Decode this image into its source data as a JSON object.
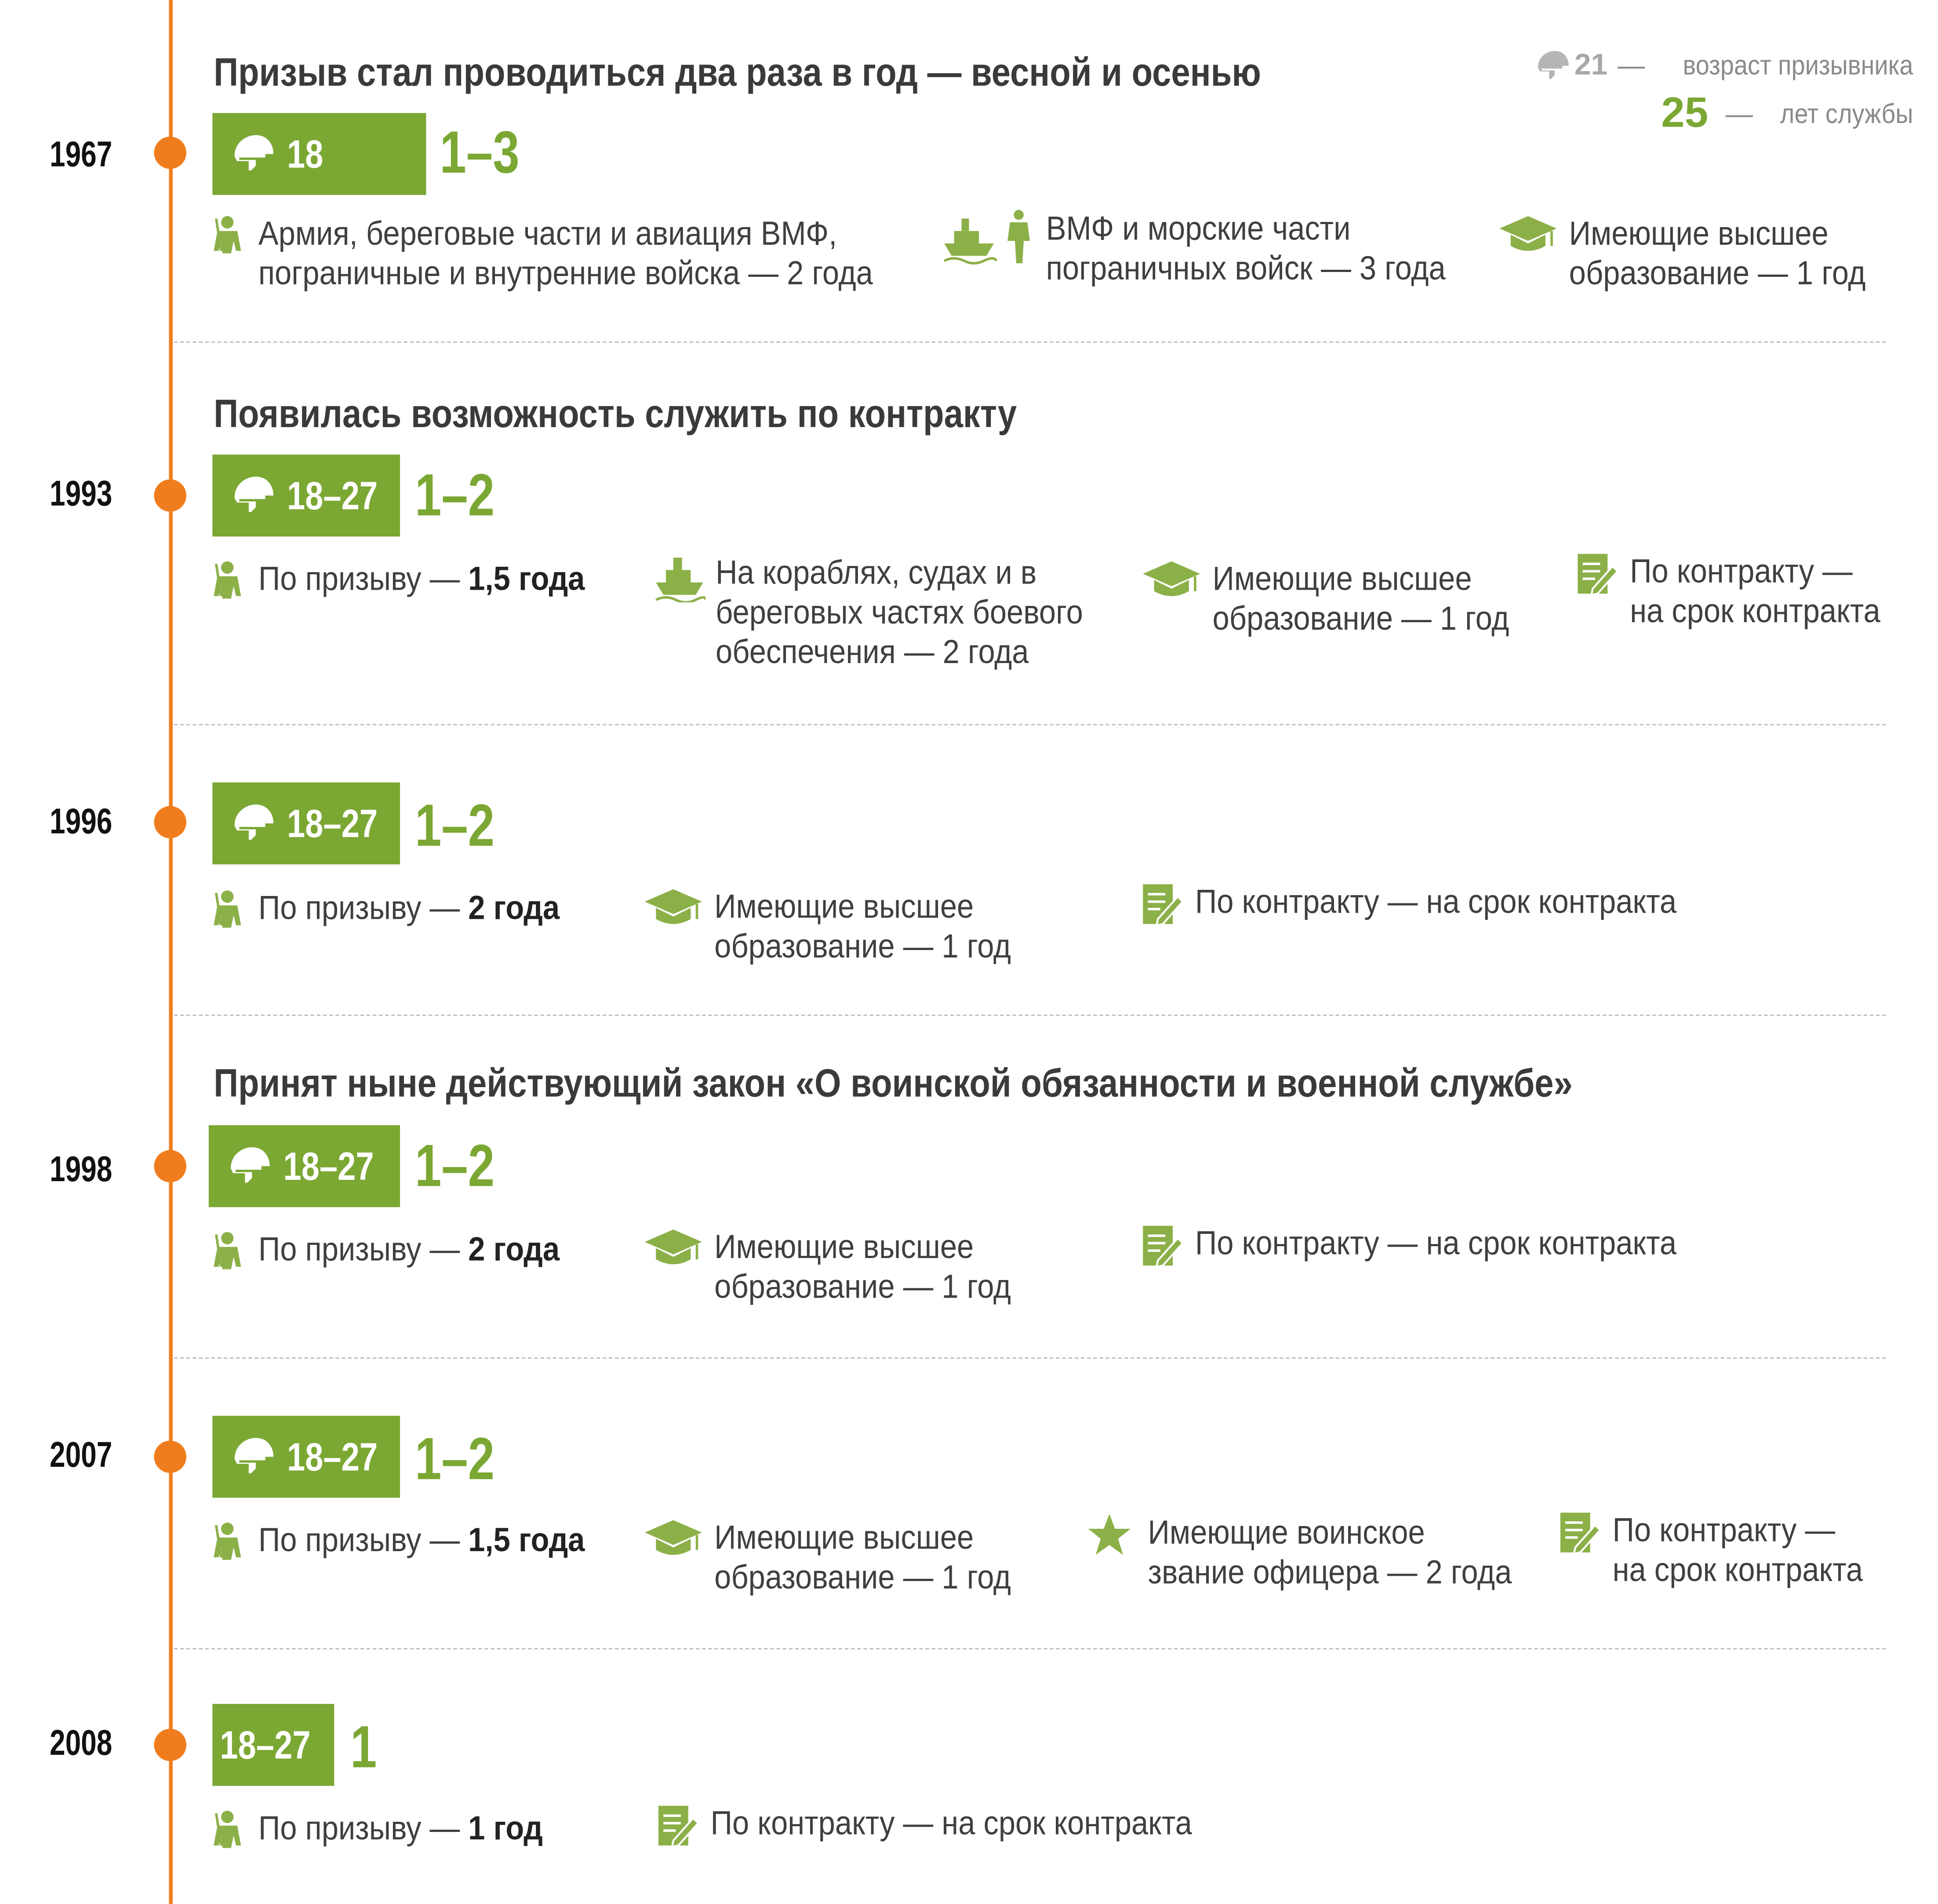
{
  "legend": {
    "age_value": "21",
    "age_label": "возраст призывника",
    "years_value": "25",
    "years_label": "лет службы",
    "dash": "—"
  },
  "colors": {
    "accent_green": "#7ba733",
    "timeline_orange": "#f07d1d",
    "icon_green": "#8cb048"
  },
  "entries": [
    {
      "year": "1967",
      "title": "Призыв стал проводиться два раза в год — весной и осенью",
      "age": "18",
      "years": "1–3",
      "items": [
        {
          "icon": "soldier-icon",
          "text": "Армия, береговые части и авиация ВМФ,\nпограничные и внутренние войска — 2 года"
        },
        {
          "icon": "ship-soldier-icon",
          "text": "ВМФ и морские части\nпограничных войск — 3 года"
        },
        {
          "icon": "graduation-cap-icon",
          "text": "Имеющие высшее\nобразование — 1 год"
        }
      ]
    },
    {
      "year": "1993",
      "title": "Появилась возможность служить по контракту",
      "age": "18–27",
      "years": "1–2",
      "items": [
        {
          "icon": "soldier-icon",
          "text": "По призыву — ",
          "bold": "1,5 года"
        },
        {
          "icon": "ship-icon",
          "text": "На кораблях, судах и в\nбереговых частях боевого\nобеспечения — 2 года"
        },
        {
          "icon": "graduation-cap-icon",
          "text": "Имеющие высшее\nобразование — 1 год"
        },
        {
          "icon": "contract-icon",
          "text": "По контракту —\nна срок контракта"
        }
      ]
    },
    {
      "year": "1996",
      "title": "",
      "age": "18–27",
      "years": "1–2",
      "items": [
        {
          "icon": "soldier-icon",
          "text": "По призыву — ",
          "bold": "2 года"
        },
        {
          "icon": "graduation-cap-icon",
          "text": "Имеющие высшее\nобразование — 1 год"
        },
        {
          "icon": "contract-icon",
          "text": "По контракту — на срок контракта"
        }
      ]
    },
    {
      "year": "1998",
      "title": "Принят ныне действующий закон «О воинской обязанности и военной службе»",
      "age": "18–27",
      "years": "1–2",
      "items": [
        {
          "icon": "soldier-icon",
          "text": "По призыву — ",
          "bold": "2 года"
        },
        {
          "icon": "graduation-cap-icon",
          "text": "Имеющие высшее\nобразование — 1 год"
        },
        {
          "icon": "contract-icon",
          "text": "По контракту — на срок контракта"
        }
      ]
    },
    {
      "year": "2007",
      "title": "",
      "age": "18–27",
      "years": "1–2",
      "items": [
        {
          "icon": "soldier-icon",
          "text": "По призыву — ",
          "bold": "1,5 года"
        },
        {
          "icon": "graduation-cap-icon",
          "text": "Имеющие высшее\nобразование — 1 год"
        },
        {
          "icon": "star-icon",
          "text": "Имеющие воинское\nзвание офицера — 2 года"
        },
        {
          "icon": "contract-icon",
          "text": "По контракту —\nна срок контракта"
        }
      ]
    },
    {
      "year": "2008",
      "title": "",
      "age": "18–27",
      "years": "1",
      "items": [
        {
          "icon": "soldier-icon",
          "text": "По призыву — ",
          "bold": "1 год"
        },
        {
          "icon": "contract-icon",
          "text": "По контракту — на срок контракта"
        }
      ]
    }
  ]
}
